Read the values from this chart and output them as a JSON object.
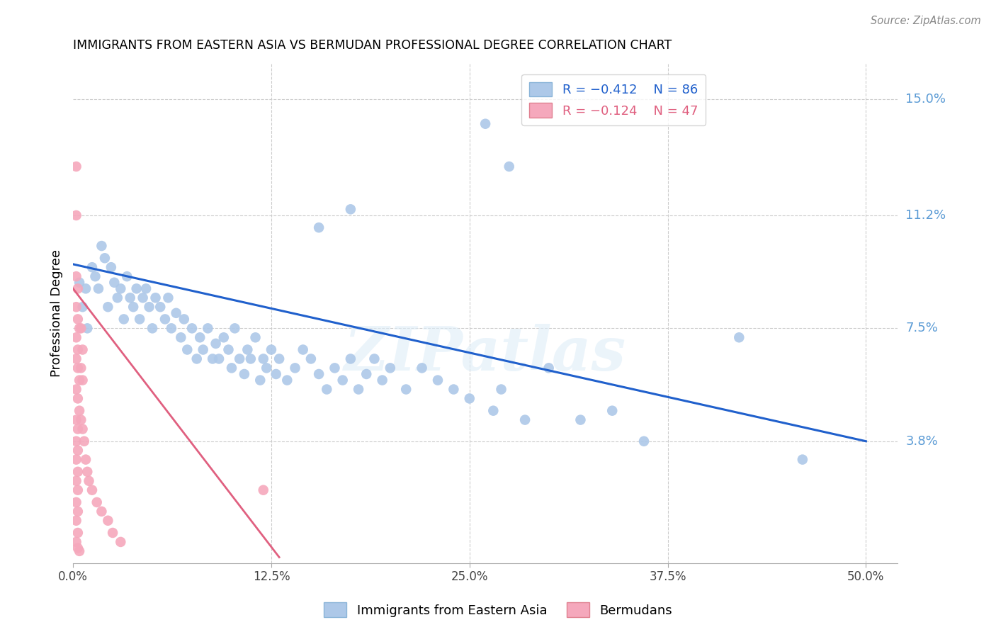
{
  "title": "IMMIGRANTS FROM EASTERN ASIA VS BERMUDAN PROFESSIONAL DEGREE CORRELATION CHART",
  "source": "Source: ZipAtlas.com",
  "ylabel": "Professional Degree",
  "yticks": [
    0.0,
    0.038,
    0.075,
    0.112,
    0.15
  ],
  "ytick_labels": [
    "",
    "3.8%",
    "7.5%",
    "11.2%",
    "15.0%"
  ],
  "xticks": [
    0.0,
    0.125,
    0.25,
    0.375,
    0.5
  ],
  "xtick_labels": [
    "0.0%",
    "12.5%",
    "25.0%",
    "37.5%",
    "50.0%"
  ],
  "xlim": [
    0.0,
    0.52
  ],
  "ylim": [
    -0.002,
    0.162
  ],
  "legend_r1": "R = −0.412",
  "legend_n1": "N = 86",
  "legend_r2": "R = −0.124",
  "legend_n2": "N = 47",
  "blue_color": "#adc8e8",
  "pink_color": "#f5a8bc",
  "line_blue": "#2060cc",
  "line_pink": "#e06080",
  "watermark": "ZIPatlas",
  "blue_scatter": [
    [
      0.004,
      0.09
    ],
    [
      0.006,
      0.082
    ],
    [
      0.008,
      0.088
    ],
    [
      0.009,
      0.075
    ],
    [
      0.012,
      0.095
    ],
    [
      0.014,
      0.092
    ],
    [
      0.016,
      0.088
    ],
    [
      0.018,
      0.102
    ],
    [
      0.02,
      0.098
    ],
    [
      0.022,
      0.082
    ],
    [
      0.024,
      0.095
    ],
    [
      0.026,
      0.09
    ],
    [
      0.028,
      0.085
    ],
    [
      0.03,
      0.088
    ],
    [
      0.032,
      0.078
    ],
    [
      0.034,
      0.092
    ],
    [
      0.036,
      0.085
    ],
    [
      0.038,
      0.082
    ],
    [
      0.04,
      0.088
    ],
    [
      0.042,
      0.078
    ],
    [
      0.044,
      0.085
    ],
    [
      0.046,
      0.088
    ],
    [
      0.048,
      0.082
    ],
    [
      0.05,
      0.075
    ],
    [
      0.052,
      0.085
    ],
    [
      0.055,
      0.082
    ],
    [
      0.058,
      0.078
    ],
    [
      0.06,
      0.085
    ],
    [
      0.062,
      0.075
    ],
    [
      0.065,
      0.08
    ],
    [
      0.068,
      0.072
    ],
    [
      0.07,
      0.078
    ],
    [
      0.072,
      0.068
    ],
    [
      0.075,
      0.075
    ],
    [
      0.078,
      0.065
    ],
    [
      0.08,
      0.072
    ],
    [
      0.082,
      0.068
    ],
    [
      0.085,
      0.075
    ],
    [
      0.088,
      0.065
    ],
    [
      0.09,
      0.07
    ],
    [
      0.092,
      0.065
    ],
    [
      0.095,
      0.072
    ],
    [
      0.098,
      0.068
    ],
    [
      0.1,
      0.062
    ],
    [
      0.102,
      0.075
    ],
    [
      0.105,
      0.065
    ],
    [
      0.108,
      0.06
    ],
    [
      0.11,
      0.068
    ],
    [
      0.112,
      0.065
    ],
    [
      0.115,
      0.072
    ],
    [
      0.118,
      0.058
    ],
    [
      0.12,
      0.065
    ],
    [
      0.122,
      0.062
    ],
    [
      0.125,
      0.068
    ],
    [
      0.128,
      0.06
    ],
    [
      0.13,
      0.065
    ],
    [
      0.135,
      0.058
    ],
    [
      0.14,
      0.062
    ],
    [
      0.145,
      0.068
    ],
    [
      0.15,
      0.065
    ],
    [
      0.155,
      0.06
    ],
    [
      0.16,
      0.055
    ],
    [
      0.165,
      0.062
    ],
    [
      0.17,
      0.058
    ],
    [
      0.175,
      0.065
    ],
    [
      0.18,
      0.055
    ],
    [
      0.185,
      0.06
    ],
    [
      0.19,
      0.065
    ],
    [
      0.195,
      0.058
    ],
    [
      0.2,
      0.062
    ],
    [
      0.21,
      0.055
    ],
    [
      0.22,
      0.062
    ],
    [
      0.23,
      0.058
    ],
    [
      0.24,
      0.055
    ],
    [
      0.25,
      0.052
    ],
    [
      0.265,
      0.048
    ],
    [
      0.27,
      0.055
    ],
    [
      0.285,
      0.045
    ],
    [
      0.3,
      0.062
    ],
    [
      0.32,
      0.045
    ],
    [
      0.34,
      0.048
    ],
    [
      0.36,
      0.038
    ],
    [
      0.42,
      0.072
    ],
    [
      0.46,
      0.032
    ],
    [
      0.26,
      0.142
    ],
    [
      0.275,
      0.128
    ],
    [
      0.155,
      0.108
    ],
    [
      0.175,
      0.114
    ]
  ],
  "pink_scatter": [
    [
      0.002,
      0.128
    ],
    [
      0.002,
      0.112
    ],
    [
      0.002,
      0.092
    ],
    [
      0.003,
      0.088
    ],
    [
      0.002,
      0.082
    ],
    [
      0.003,
      0.078
    ],
    [
      0.004,
      0.075
    ],
    [
      0.002,
      0.072
    ],
    [
      0.003,
      0.068
    ],
    [
      0.002,
      0.065
    ],
    [
      0.003,
      0.062
    ],
    [
      0.004,
      0.058
    ],
    [
      0.002,
      0.055
    ],
    [
      0.003,
      0.052
    ],
    [
      0.004,
      0.048
    ],
    [
      0.002,
      0.045
    ],
    [
      0.003,
      0.042
    ],
    [
      0.002,
      0.038
    ],
    [
      0.003,
      0.035
    ],
    [
      0.002,
      0.032
    ],
    [
      0.003,
      0.028
    ],
    [
      0.002,
      0.025
    ],
    [
      0.003,
      0.022
    ],
    [
      0.002,
      0.018
    ],
    [
      0.003,
      0.015
    ],
    [
      0.002,
      0.012
    ],
    [
      0.003,
      0.008
    ],
    [
      0.002,
      0.005
    ],
    [
      0.003,
      0.003
    ],
    [
      0.004,
      0.002
    ],
    [
      0.005,
      0.075
    ],
    [
      0.006,
      0.068
    ],
    [
      0.005,
      0.062
    ],
    [
      0.006,
      0.058
    ],
    [
      0.005,
      0.045
    ],
    [
      0.006,
      0.042
    ],
    [
      0.007,
      0.038
    ],
    [
      0.008,
      0.032
    ],
    [
      0.009,
      0.028
    ],
    [
      0.01,
      0.025
    ],
    [
      0.012,
      0.022
    ],
    [
      0.015,
      0.018
    ],
    [
      0.018,
      0.015
    ],
    [
      0.022,
      0.012
    ],
    [
      0.025,
      0.008
    ],
    [
      0.03,
      0.005
    ],
    [
      0.12,
      0.022
    ]
  ],
  "blue_line_x": [
    0.0,
    0.5
  ],
  "blue_line_y": [
    0.096,
    0.038
  ],
  "pink_line_x": [
    0.0,
    0.13
  ],
  "pink_line_y": [
    0.088,
    0.0
  ]
}
